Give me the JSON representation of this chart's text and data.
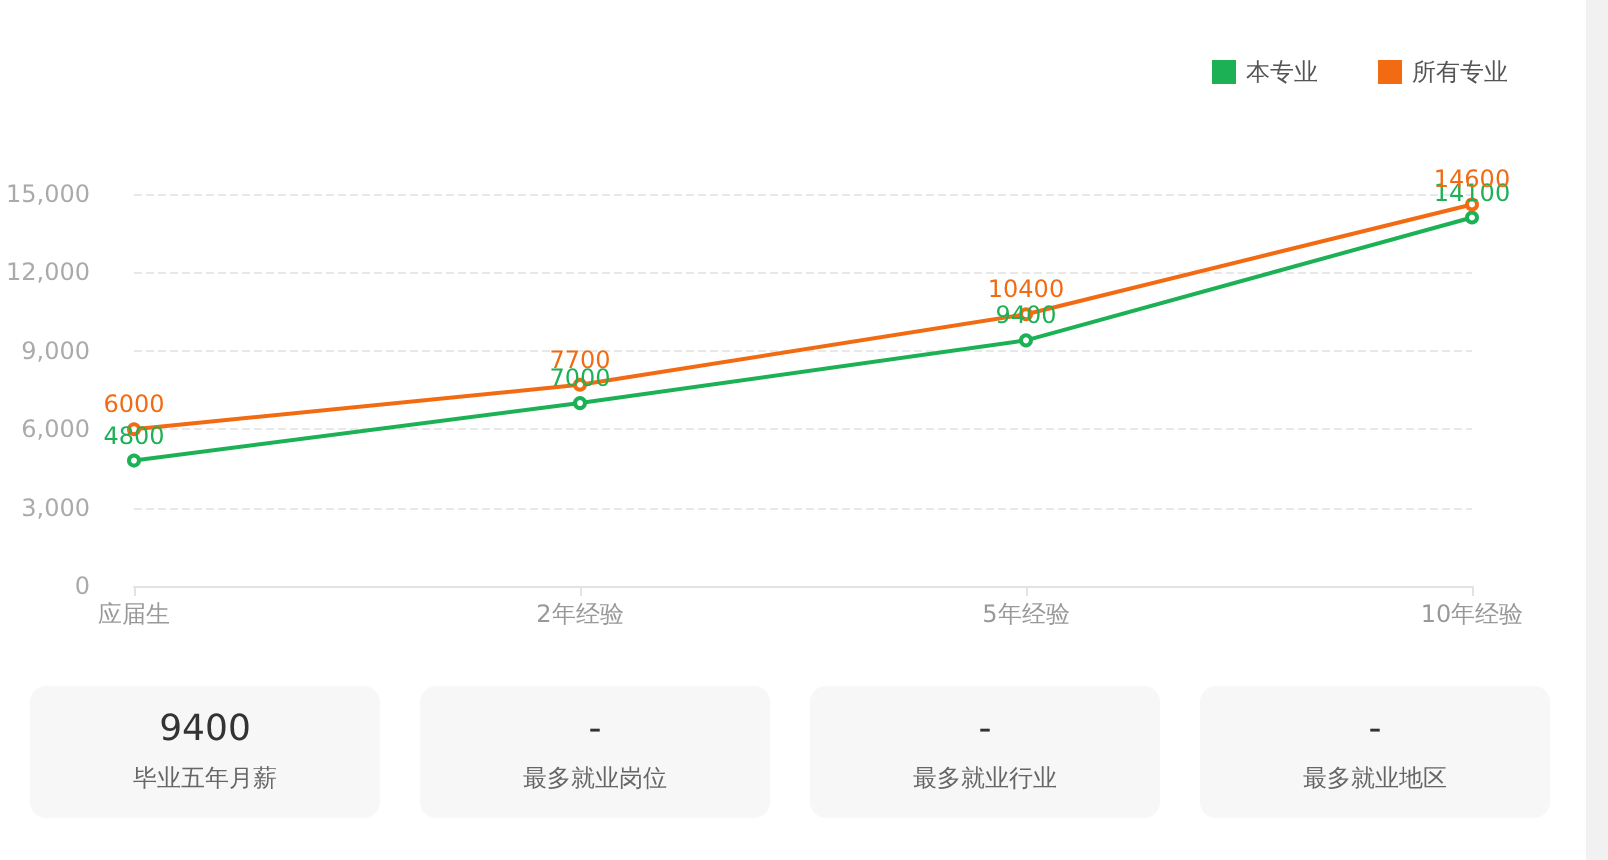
{
  "chart_data": [
    {
      "type": "line",
      "categories": [
        "应届生",
        "2年经验",
        "5年经验",
        "10年经验"
      ],
      "series": [
        {
          "name": "本专业",
          "color": "#1db155",
          "values": [
            4800,
            7000,
            9400,
            14100
          ]
        },
        {
          "name": "所有专业",
          "color": "#f26b12",
          "values": [
            6000,
            7700,
            10400,
            14600
          ]
        }
      ],
      "ylim": [
        0,
        15000
      ],
      "yticks": [
        0,
        {
          "value": 3000,
          "label": "3,000"
        },
        {
          "value": 6000,
          "label": "6,000"
        },
        {
          "value": 9000,
          "label": "9,000"
        },
        {
          "value": 12000,
          "label": "12,000"
        },
        {
          "value": 15000,
          "label": "15,000"
        }
      ],
      "grid": "y",
      "legend": "top right",
      "marker": "circle",
      "line_style": "solid",
      "data_labels": true
    },
    {
      "type": "other",
      "annotations": [
        "9400",
        "毕业五年月薪",
        "-",
        "最多就业岗位",
        "-",
        "最多就业行业",
        "-",
        "最多就业地区"
      ]
    }
  ]
}
